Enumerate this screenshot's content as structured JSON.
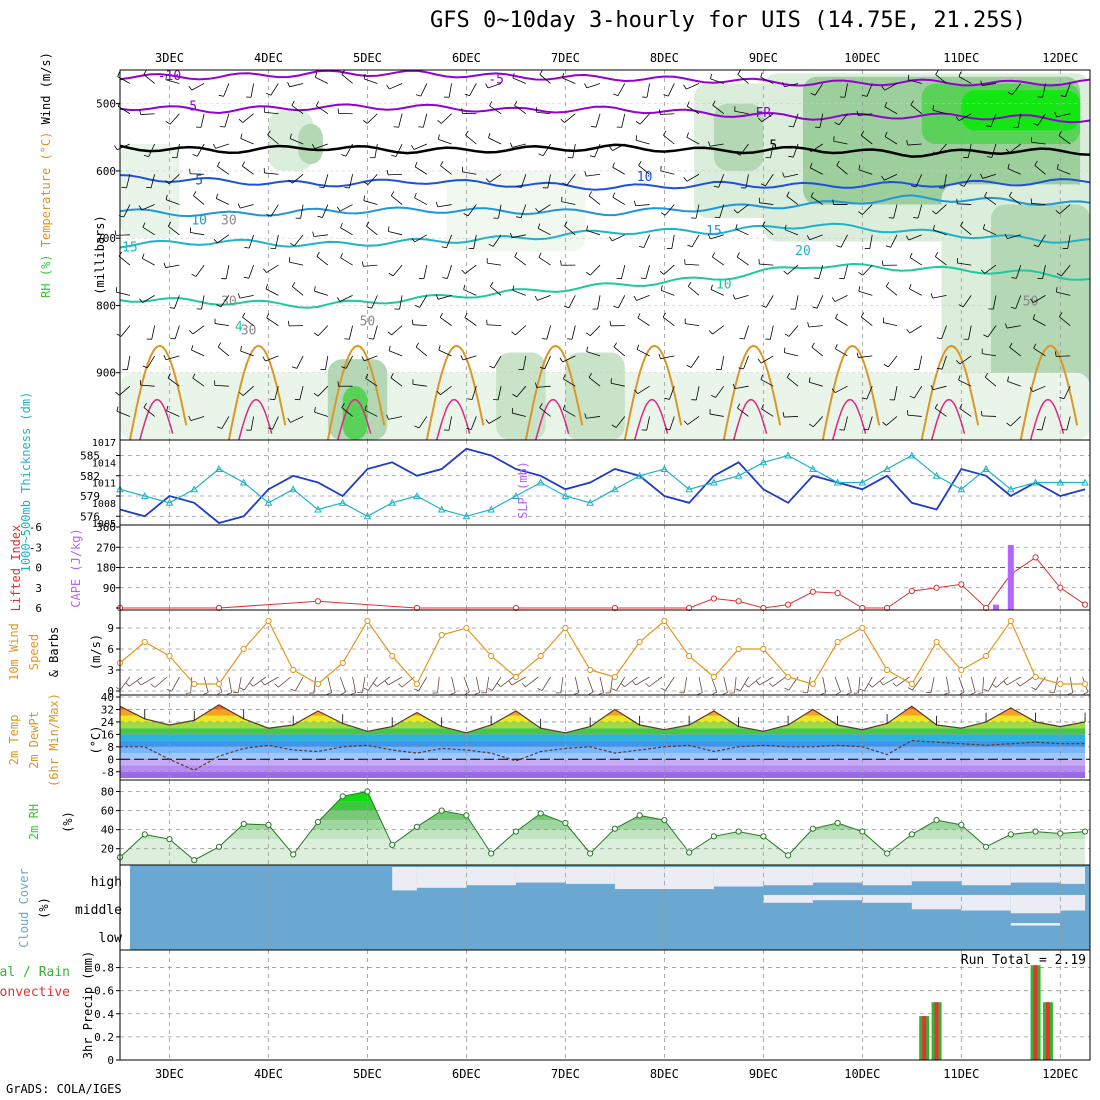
{
  "title": "GFS 0~10day 3-hourly for UIS (14.75E, 21.25S)",
  "credit": "GrADS: COLA/IGES",
  "colors": {
    "temp_cold": "#9400d3",
    "temp_freeze": "#000000",
    "temp_cool": "#1e50dc",
    "temp_mid": "#1e96dc",
    "temp_warm": "#1ec8a0",
    "temp_hot": "#dc9628",
    "temp_vhot": "#dc2882",
    "rh": "#32c832",
    "slp": "#1e3cc8",
    "thickness": "#1eb4c8",
    "lifted": "#dc3232",
    "cape": "#b464ff",
    "wind": "#e6961e",
    "precip_total": "#32b432",
    "precip_conv": "#e63232",
    "cloud": "#6aa8d2"
  },
  "chart_data": [
    {
      "type": "area",
      "panel": "upper-air cross section",
      "ylabel_parts": [
        "RH (%)",
        "Temperature (°C)",
        "Wind (m/s)"
      ],
      "ylabel_unit": "(millibars)",
      "x_dates": [
        "3DEC",
        "4DEC",
        "5DEC",
        "6DEC",
        "7DEC",
        "8DEC",
        "9DEC",
        "10DEC",
        "11DEC",
        "12DEC"
      ],
      "y_ticks": [
        500,
        600,
        700,
        800,
        900
      ],
      "ylim": [
        1000,
        450
      ],
      "contour_labels": [
        "-10",
        "-5",
        "-5",
        "FR",
        "5",
        "5",
        "10",
        "10",
        "15",
        "15",
        "20",
        "10",
        "30",
        "30",
        "30",
        "50",
        "50",
        "4"
      ],
      "temperature_contours": [
        {
          "level": -10,
          "pressure": [
            460,
            460,
            455,
            455,
            460,
            462,
            465,
            470,
            468,
            470,
            468
          ]
        },
        {
          "level": -5,
          "pressure": [
            505,
            510,
            505,
            505,
            510,
            508,
            515,
            520,
            518,
            520,
            525
          ]
        },
        {
          "level": 0,
          "pressure": [
            565,
            570,
            565,
            570,
            568,
            565,
            570,
            568,
            575,
            570,
            572
          ]
        },
        {
          "level": 5,
          "pressure": [
            610,
            615,
            620,
            615,
            620,
            625,
            620,
            622,
            620,
            618,
            615
          ]
        },
        {
          "level": 10,
          "pressure": [
            660,
            665,
            660,
            658,
            660,
            662,
            655,
            650,
            640,
            645,
            650
          ]
        },
        {
          "level": 15,
          "pressure": [
            710,
            705,
            710,
            705,
            700,
            690,
            690,
            680,
            690,
            700,
            705
          ]
        },
        {
          "level": 20,
          "pressure": [
            790,
            795,
            800,
            790,
            780,
            770,
            760,
            740,
            745,
            750,
            760
          ]
        }
      ]
    },
    {
      "type": "line",
      "panel": "slp-thickness",
      "ylabel_left": "Thickness (dm)",
      "ylabel_left_parts": [
        "1000~500mb",
        "Thickness (dm)"
      ],
      "ylabel_right": "SLP (mb)",
      "left_ticks": [
        "585",
        "582",
        "579",
        "576"
      ],
      "right_ticks": [
        "1017",
        "1014",
        "1011",
        "1008",
        "1005"
      ],
      "thickness_ylim": [
        575,
        587
      ],
      "slp_ylim": [
        1005,
        1017
      ],
      "x": [
        2.5,
        2.75,
        3,
        3.25,
        3.5,
        3.75,
        4,
        4.25,
        4.5,
        4.75,
        5,
        5.25,
        5.5,
        5.75,
        6,
        6.25,
        6.5,
        6.75,
        7,
        7.25,
        7.5,
        7.75,
        8,
        8.25,
        8.5,
        8.75,
        9,
        9.25,
        9.5,
        9.75,
        10,
        10.25,
        10.5,
        10.75,
        11,
        11.25,
        11.5,
        11.75,
        12,
        12.25
      ],
      "series": [
        {
          "name": "SLP",
          "values": [
            1007,
            1006,
            1009,
            1008,
            1005,
            1006,
            1010,
            1012,
            1011,
            1009,
            1013,
            1014,
            1012,
            1013,
            1016,
            1015,
            1013,
            1012,
            1010,
            1011,
            1013,
            1012,
            1009,
            1008,
            1012,
            1014,
            1010,
            1008,
            1012,
            1011,
            1010,
            1012,
            1008,
            1007,
            1013,
            1012,
            1009,
            1011,
            1009,
            1010
          ]
        },
        {
          "name": "Thickness",
          "values": [
            580,
            579,
            578,
            580,
            583,
            581,
            578,
            580,
            577,
            578,
            576,
            578,
            579,
            577,
            576,
            577,
            579,
            581,
            579,
            578,
            580,
            582,
            583,
            580,
            581,
            582,
            584,
            585,
            583,
            581,
            581,
            583,
            585,
            582,
            580,
            583,
            580,
            581,
            581,
            581
          ]
        }
      ]
    },
    {
      "type": "line",
      "panel": "lifted-cape",
      "ylabel_left": "Lifted Index",
      "ylabel_right": "CAPE (J/kg)",
      "left_ticks": [
        "-6",
        "-3",
        "0",
        "3",
        "6"
      ],
      "right_ticks": [
        "360",
        "270",
        "180",
        "90"
      ],
      "lifted_ylim": [
        6,
        -6
      ],
      "x": [
        2.5,
        3.5,
        4.5,
        5.5,
        6.5,
        7.5,
        8.25,
        8.5,
        8.75,
        9,
        9.25,
        9.5,
        9.75,
        10,
        10.25,
        10.5,
        10.75,
        11,
        11.25,
        11.5,
        11.75,
        12,
        12.25
      ],
      "series": [
        {
          "name": "Lifted Index",
          "values": [
            6,
            6,
            5,
            6,
            6,
            6,
            6,
            4.6,
            5,
            6,
            5.5,
            3.6,
            3.8,
            6,
            6,
            3.5,
            3,
            2.5,
            6,
            1,
            -1.5,
            3,
            5.5
          ]
        },
        {
          "name": "CAPE",
          "x": [
            11.35,
            11.5
          ],
          "values": [
            15,
            280
          ]
        }
      ]
    },
    {
      "type": "line",
      "panel": "wind-10m",
      "ylabel_parts": [
        "10m Wind",
        "Speed",
        "& Barbs"
      ],
      "ylabel_unit": "(m/s)",
      "y_ticks": [
        "9",
        "6",
        "3",
        "0"
      ],
      "ylim": [
        0,
        11
      ],
      "x": [
        2.5,
        2.75,
        3,
        3.25,
        3.5,
        3.75,
        4,
        4.25,
        4.5,
        4.75,
        5,
        5.25,
        5.5,
        5.75,
        6,
        6.25,
        6.5,
        6.75,
        7,
        7.25,
        7.5,
        7.75,
        8,
        8.25,
        8.5,
        8.75,
        9,
        9.25,
        9.5,
        9.75,
        10,
        10.25,
        10.5,
        10.75,
        11,
        11.25,
        11.5,
        11.75,
        12,
        12.25
      ],
      "series": [
        {
          "name": "Speed",
          "values": [
            4,
            7,
            5,
            1,
            1,
            6,
            10,
            3,
            1,
            4,
            10,
            5,
            1,
            8,
            9,
            5,
            2,
            5,
            9,
            3,
            2,
            7,
            10,
            5,
            2,
            6,
            6,
            2,
            1,
            7,
            9,
            3,
            1,
            7,
            3,
            5,
            10,
            2,
            1,
            1
          ]
        }
      ]
    },
    {
      "type": "area",
      "panel": "temperature-2m",
      "ylabel_parts": [
        "2m Temp",
        "2m DewPt",
        "(6hr Min/Max)"
      ],
      "ylabel_unit": "(°C)",
      "y_ticks": [
        "40",
        "32",
        "24",
        "16",
        "8",
        "0",
        "-8"
      ],
      "ylim": [
        -12,
        40
      ],
      "x": [
        2.5,
        2.75,
        3,
        3.25,
        3.5,
        3.75,
        4,
        4.25,
        4.5,
        4.75,
        5,
        5.25,
        5.5,
        5.75,
        6,
        6.25,
        6.5,
        6.75,
        7,
        7.25,
        7.5,
        7.75,
        8,
        8.25,
        8.5,
        8.75,
        9,
        9.25,
        9.5,
        9.75,
        10,
        10.25,
        10.5,
        10.75,
        11,
        11.25,
        11.5,
        11.75,
        12,
        12.25
      ],
      "series": [
        {
          "name": "Temperature",
          "values": [
            34,
            26,
            22,
            25,
            35,
            26,
            20,
            22,
            31,
            23,
            18,
            21,
            30,
            21,
            17,
            22,
            31,
            20,
            17,
            21,
            32,
            22,
            19,
            22,
            31,
            21,
            18,
            22,
            32,
            22,
            19,
            23,
            34,
            22,
            20,
            24,
            33,
            24,
            21,
            24
          ]
        },
        {
          "name": "Dew Point",
          "values": [
            8,
            8,
            0,
            -7,
            2,
            7,
            9,
            6,
            5,
            8,
            9,
            6,
            4,
            7,
            6,
            4,
            -1,
            5,
            7,
            8,
            4,
            6,
            8,
            9,
            5,
            8,
            9,
            8,
            8,
            9,
            8,
            3,
            12,
            11,
            10,
            9,
            10,
            11,
            10,
            10
          ]
        }
      ]
    },
    {
      "type": "area",
      "panel": "rh-2m",
      "ylabel": "2m RH",
      "ylabel_unit": "(%)",
      "y_ticks": [
        "80",
        "60",
        "40",
        "20"
      ],
      "ylim": [
        5,
        90
      ],
      "x": [
        2.5,
        2.75,
        3,
        3.25,
        3.5,
        3.75,
        4,
        4.25,
        4.5,
        4.75,
        5,
        5.25,
        5.5,
        5.75,
        6,
        6.25,
        6.5,
        6.75,
        7,
        7.25,
        7.5,
        7.75,
        8,
        8.25,
        8.5,
        8.75,
        9,
        9.25,
        9.5,
        9.75,
        10,
        10.25,
        10.5,
        10.75,
        11,
        11.25,
        11.5,
        11.75,
        12,
        12.25
      ],
      "series": [
        {
          "name": "RH",
          "values": [
            11,
            35,
            30,
            8,
            22,
            46,
            45,
            14,
            48,
            75,
            80,
            24,
            43,
            60,
            55,
            15,
            38,
            57,
            47,
            15,
            41,
            55,
            50,
            16,
            33,
            38,
            33,
            13,
            41,
            47,
            38,
            15,
            35,
            50,
            45,
            22,
            35,
            38,
            36,
            38
          ]
        }
      ]
    },
    {
      "type": "area",
      "panel": "cloud-cover",
      "ylabel": "Cloud Cover",
      "ylabel_unit": "(%)",
      "row_labels": [
        "high",
        "middle",
        "low"
      ],
      "x": [
        2.5,
        3,
        3.5,
        4,
        4.5,
        5,
        5.25,
        5.5,
        6,
        6.5,
        7,
        7.5,
        8,
        8.5,
        9,
        9.5,
        10,
        10.5,
        11,
        11.5,
        12,
        12.25
      ],
      "series": [
        {
          "name": "high",
          "values": [
            100,
            100,
            100,
            100,
            100,
            100,
            10,
            20,
            30,
            40,
            35,
            15,
            15,
            25,
            30,
            40,
            30,
            45,
            30,
            40,
            35,
            90
          ]
        },
        {
          "name": "middle",
          "values": [
            100,
            100,
            100,
            100,
            100,
            100,
            100,
            100,
            100,
            100,
            100,
            100,
            100,
            100,
            70,
            80,
            70,
            45,
            40,
            30,
            40,
            55
          ]
        },
        {
          "name": "low",
          "values": [
            100,
            100,
            100,
            100,
            100,
            100,
            100,
            100,
            100,
            100,
            100,
            100,
            100,
            100,
            100,
            100,
            100,
            100,
            100,
            90,
            100,
            100
          ]
        }
      ]
    },
    {
      "type": "bar",
      "panel": "precip",
      "ylabel_parts": [
        "Total / Rain",
        "Convective"
      ],
      "ylabel": "3hr Precip (mm)",
      "annotation": "Run Total = 2.19",
      "y_ticks": [
        "0.8",
        "0.6",
        "0.4",
        "0.2",
        "0"
      ],
      "ylim": [
        0,
        0.9
      ],
      "x": [
        10.625,
        10.75,
        11.75,
        11.875
      ],
      "series": [
        {
          "name": "Total",
          "values": [
            0.38,
            0.5,
            0.82,
            0.5
          ]
        },
        {
          "name": "Convective",
          "values": [
            0.38,
            0.5,
            0.82,
            0.5
          ]
        }
      ]
    }
  ],
  "x_axis": {
    "dates": [
      "3DEC",
      "4DEC",
      "5DEC",
      "6DEC",
      "7DEC",
      "8DEC",
      "9DEC",
      "10DEC",
      "11DEC",
      "12DEC"
    ],
    "range": [
      2.5,
      12.3
    ]
  }
}
